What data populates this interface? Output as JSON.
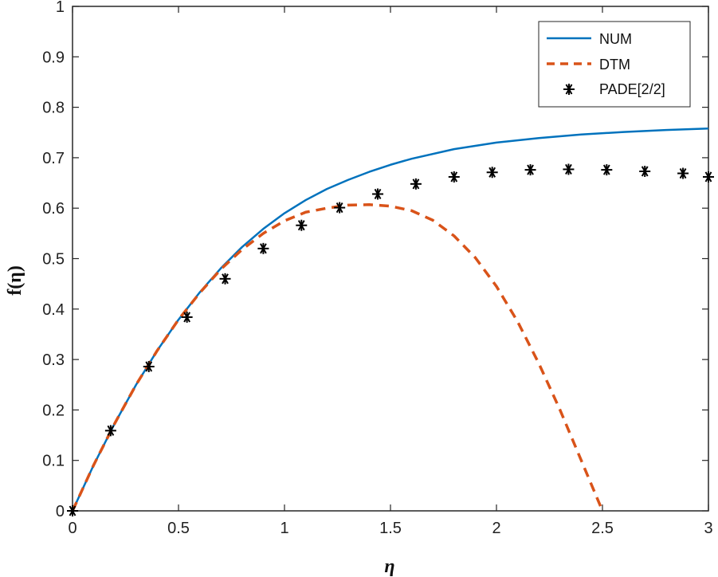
{
  "chart_data": {
    "type": "line",
    "xlabel": "η",
    "ylabel": "f(η)",
    "xlim": [
      0,
      3
    ],
    "ylim": [
      0,
      1
    ],
    "xticks": [
      0,
      0.5,
      1,
      1.5,
      2,
      2.5,
      3
    ],
    "xtick_labels": [
      "0",
      "0.5",
      "1",
      "1.5",
      "2",
      "2.5",
      "3"
    ],
    "yticks": [
      0,
      0.1,
      0.2,
      0.3,
      0.4,
      0.5,
      0.6,
      0.7,
      0.8,
      0.9,
      1
    ],
    "ytick_labels": [
      "0",
      "0.1",
      "0.2",
      "0.3",
      "0.4",
      "0.5",
      "0.6",
      "0.7",
      "0.8",
      "0.9",
      "1"
    ],
    "grid": false,
    "legend_position": "top-right",
    "series": [
      {
        "name": "NUM",
        "style": "solid",
        "color": "#0072BD",
        "x": [
          0,
          0.1,
          0.2,
          0.3,
          0.4,
          0.5,
          0.6,
          0.7,
          0.8,
          0.9,
          1.0,
          1.1,
          1.2,
          1.3,
          1.4,
          1.5,
          1.6,
          1.8,
          2.0,
          2.2,
          2.4,
          2.6,
          2.8,
          3.0
        ],
        "y": [
          0,
          0.091,
          0.174,
          0.25,
          0.318,
          0.379,
          0.433,
          0.481,
          0.523,
          0.559,
          0.59,
          0.616,
          0.638,
          0.656,
          0.672,
          0.686,
          0.698,
          0.717,
          0.73,
          0.739,
          0.746,
          0.751,
          0.755,
          0.758
        ]
      },
      {
        "name": "DTM",
        "style": "dashed",
        "color": "#D95319",
        "x": [
          0,
          0.1,
          0.2,
          0.3,
          0.4,
          0.5,
          0.6,
          0.7,
          0.8,
          0.9,
          1.0,
          1.1,
          1.2,
          1.3,
          1.4,
          1.5,
          1.6,
          1.7,
          1.8,
          1.9,
          2.0,
          2.1,
          2.2,
          2.3,
          2.4,
          2.5
        ],
        "y": [
          0,
          0.091,
          0.174,
          0.25,
          0.318,
          0.379,
          0.432,
          0.479,
          0.518,
          0.55,
          0.575,
          0.592,
          0.6,
          0.606,
          0.607,
          0.604,
          0.595,
          0.576,
          0.545,
          0.502,
          0.445,
          0.375,
          0.292,
          0.2,
          0.1,
          0
        ]
      },
      {
        "name": "PADE[2/2]",
        "style": "markers",
        "marker": "asterisk",
        "color": "#000000",
        "x": [
          0,
          0.18,
          0.36,
          0.54,
          0.72,
          0.9,
          1.08,
          1.26,
          1.44,
          1.62,
          1.8,
          1.98,
          2.16,
          2.34,
          2.52,
          2.7,
          2.88,
          3.0
        ],
        "y": [
          0,
          0.159,
          0.286,
          0.384,
          0.46,
          0.52,
          0.566,
          0.601,
          0.628,
          0.648,
          0.662,
          0.671,
          0.676,
          0.677,
          0.676,
          0.673,
          0.669,
          0.662
        ]
      }
    ]
  }
}
